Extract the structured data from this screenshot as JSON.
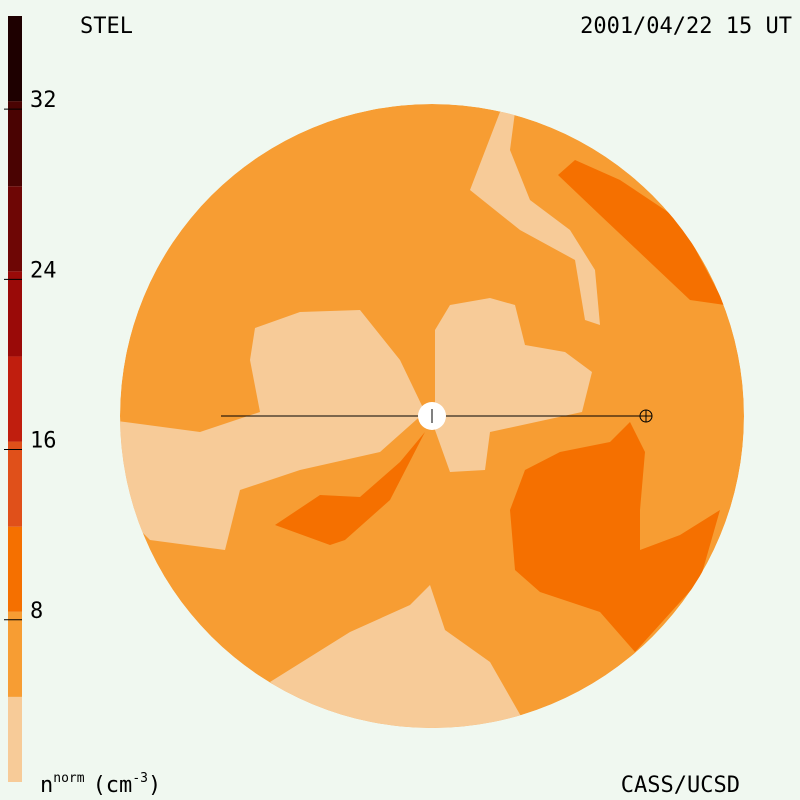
{
  "chart_data": {
    "type": "colorbar",
    "title": "STEL",
    "subtitle": "2001/04/22 15 UT",
    "credit": "CASS/UCSD",
    "label_parts": [
      "n",
      "norm",
      "(cm",
      "-3",
      ")"
    ],
    "levels": [
      0,
      4,
      8,
      12,
      16,
      20,
      24,
      28,
      32,
      36
    ],
    "colors": [
      "#f7cb98",
      "#f79d33",
      "#f57000",
      "#e0501a",
      "#c01e0e",
      "#9a0a08",
      "#6e0605",
      "#4a0302",
      "#1e0000"
    ],
    "ylim": [
      0,
      36
    ],
    "yticks": [
      8,
      16,
      24,
      32
    ]
  }
}
